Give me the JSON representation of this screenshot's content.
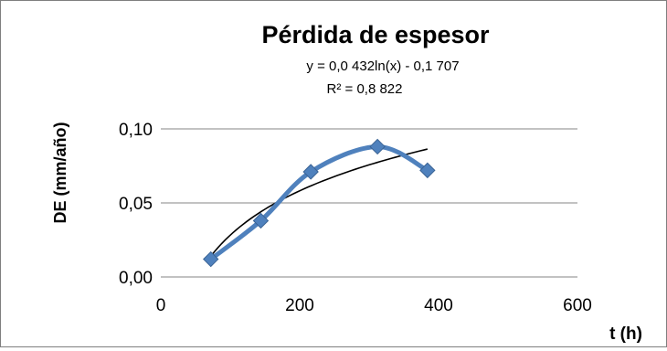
{
  "chart_data": {
    "type": "scatter",
    "title": "Pérdida de espesor",
    "xlabel": "t (h)",
    "ylabel": "DE (mm/año)",
    "trendline_equation": "y = 0,0 432ln(x) - 0,1 707",
    "trendline_r2": "R² = 0,8 822",
    "xlim": [
      0,
      600
    ],
    "ylim": [
      0,
      0.1
    ],
    "x_ticks": [
      0,
      200,
      400,
      600
    ],
    "x_tick_labels": [
      "0",
      "200",
      "400",
      "600"
    ],
    "y_ticks": [
      0,
      0.05,
      0.1
    ],
    "y_tick_labels": [
      "0,00",
      "0,05",
      "0,10"
    ],
    "grid": true,
    "legend": "none",
    "series": [
      {
        "x": [
          72,
          144,
          216,
          312,
          384
        ],
        "y": [
          0.012,
          0.038,
          0.071,
          0.088,
          0.072
        ],
        "color": "#4f81bd",
        "marker": "diamond",
        "smoothed": true
      }
    ],
    "trendline": {
      "type": "logarithmic",
      "a": 0.0432,
      "b": -0.1707,
      "x_range": [
        72,
        384
      ],
      "color": "#000000"
    }
  }
}
